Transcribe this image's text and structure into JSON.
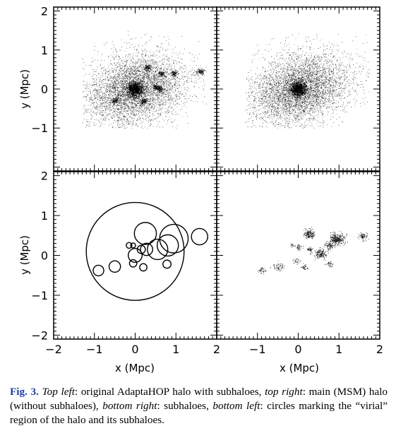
{
  "figure": {
    "caption": {
      "label": "Fig. 3.",
      "segments": [
        {
          "t": " ",
          "i": false
        },
        {
          "t": "Top left",
          "i": true
        },
        {
          "t": ": original AdaptaHOP halo with subhaloes, ",
          "i": false
        },
        {
          "t": "top right",
          "i": true
        },
        {
          "t": ": main (MSM) halo (without subhaloes), ",
          "i": false
        },
        {
          "t": "bottom right",
          "i": true
        },
        {
          "t": ": subhaloes, ",
          "i": false
        },
        {
          "t": "bottom left",
          "i": true
        },
        {
          "t": ": circles marking the “virial” region of the halo and its subhaloes.",
          "i": false
        }
      ]
    },
    "colors": {
      "ink": "#000000",
      "label": "#1f3fa6"
    }
  },
  "chart_data": [
    {
      "panel": "top-left",
      "type": "scatter",
      "ylabel": "y (Mpc)",
      "xlim": [
        -2,
        2
      ],
      "ylim": [
        -2.1,
        2.1
      ],
      "yticks": [
        "2",
        "1",
        "0",
        "−1"
      ],
      "main_halo": {
        "center": [
          0,
          0
        ],
        "spread": [
          0.55,
          0.4
        ],
        "extent": [
          -1.3,
          1.75,
          -1.0,
          1.5
        ]
      },
      "subhaloes": [
        [
          0.3,
          0.55
        ],
        [
          0.95,
          0.4
        ],
        [
          0.65,
          0.4
        ],
        [
          1.6,
          0.45
        ],
        [
          0.6,
          0.0
        ],
        [
          0.2,
          -0.3
        ],
        [
          -0.5,
          -0.3
        ],
        [
          0.5,
          0.05
        ]
      ]
    },
    {
      "panel": "top-right",
      "type": "scatter",
      "xlim": [
        -2,
        2
      ],
      "ylim": [
        -2.1,
        2.1
      ],
      "main_halo": {
        "center": [
          0,
          0
        ],
        "spread": [
          0.55,
          0.4
        ],
        "extent": [
          -1.3,
          1.75,
          -1.0,
          1.5
        ]
      }
    },
    {
      "panel": "bottom-left",
      "type": "scatter",
      "xlabel": "x (Mpc)",
      "ylabel": "y (Mpc)",
      "xlim": [
        -2,
        2
      ],
      "ylim": [
        -2.1,
        2.1
      ],
      "xticks": [
        "−2",
        "−1",
        "0",
        "1",
        "2"
      ],
      "yticks": [
        "2",
        "1",
        "0",
        "−1",
        "−2"
      ],
      "circles": [
        {
          "x": 0.0,
          "y": 0.1,
          "r": 1.2
        },
        {
          "x": 0.25,
          "y": 0.55,
          "r": 0.27
        },
        {
          "x": 0.95,
          "y": 0.42,
          "r": 0.35
        },
        {
          "x": 0.8,
          "y": 0.25,
          "r": 0.26
        },
        {
          "x": 1.58,
          "y": 0.47,
          "r": 0.2
        },
        {
          "x": 0.55,
          "y": 0.15,
          "r": 0.25
        },
        {
          "x": 0.28,
          "y": 0.15,
          "r": 0.15
        },
        {
          "x": 0.0,
          "y": 0.0,
          "r": 0.17
        },
        {
          "x": 0.15,
          "y": 0.15,
          "r": 0.1
        },
        {
          "x": -0.15,
          "y": 0.25,
          "r": 0.07
        },
        {
          "x": -0.05,
          "y": 0.25,
          "r": 0.06
        },
        {
          "x": -0.05,
          "y": -0.2,
          "r": 0.09
        },
        {
          "x": 0.2,
          "y": -0.3,
          "r": 0.09
        },
        {
          "x": 0.78,
          "y": -0.22,
          "r": 0.1
        },
        {
          "x": -0.5,
          "y": -0.28,
          "r": 0.14
        },
        {
          "x": -0.9,
          "y": -0.38,
          "r": 0.13
        }
      ]
    },
    {
      "panel": "bottom-right",
      "type": "scatter",
      "xlabel": "x (Mpc)",
      "xlim": [
        -2,
        2
      ],
      "ylim": [
        -2.1,
        2.1
      ],
      "xticks": [
        "0",
        "1",
        "2"
      ],
      "tick_prefix": "−1",
      "subhaloes": [
        {
          "x": 0.25,
          "y": 0.55,
          "spread": 0.07,
          "n": 140
        },
        {
          "x": 0.95,
          "y": 0.42,
          "spread": 0.09,
          "n": 260
        },
        {
          "x": 0.75,
          "y": 0.25,
          "spread": 0.06,
          "n": 80
        },
        {
          "x": 1.58,
          "y": 0.47,
          "spread": 0.05,
          "n": 70
        },
        {
          "x": 0.55,
          "y": 0.05,
          "spread": 0.07,
          "n": 150
        },
        {
          "x": 0.3,
          "y": 0.15,
          "spread": 0.04,
          "n": 40
        },
        {
          "x": 0.0,
          "y": 0.2,
          "spread": 0.04,
          "n": 30
        },
        {
          "x": -0.15,
          "y": 0.25,
          "spread": 0.03,
          "n": 15
        },
        {
          "x": -0.05,
          "y": -0.15,
          "spread": 0.04,
          "n": 25
        },
        {
          "x": 0.15,
          "y": -0.3,
          "spread": 0.04,
          "n": 35
        },
        {
          "x": 0.78,
          "y": -0.22,
          "spread": 0.04,
          "n": 30
        },
        {
          "x": -0.5,
          "y": -0.28,
          "spread": 0.06,
          "n": 50
        },
        {
          "x": -0.9,
          "y": -0.38,
          "spread": 0.05,
          "n": 35
        }
      ]
    }
  ]
}
